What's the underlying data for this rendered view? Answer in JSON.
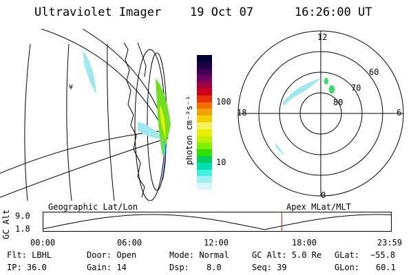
{
  "header": {
    "title": "Ultraviolet Imager",
    "date": "19 Oct 07",
    "time": "16:26:00 UT"
  },
  "colorbar": {
    "label": "photon cm⁻²s⁻¹",
    "ticks": [
      "100",
      "10"
    ],
    "colors": [
      "#000033",
      "#1a0040",
      "#3d0055",
      "#700060",
      "#a00040",
      "#d0001a",
      "#e83000",
      "#f07000",
      "#f0a000",
      "#f0d000",
      "#f0f060",
      "#e8f000",
      "#c0f000",
      "#80f000",
      "#30e000",
      "#00d060",
      "#00e0b0",
      "#40f0e0",
      "#a0f0f0",
      "#d8f8f8"
    ]
  },
  "polar": {
    "mlt_labels": {
      "top": "12",
      "left": "18",
      "right": "6",
      "bottom": "0"
    },
    "lat_labels": [
      "60",
      "70",
      "80"
    ]
  },
  "orbit": {
    "ylabel": "GC Alt",
    "yticks": [
      "9.0",
      "1.8"
    ],
    "left_caption": "Geographic Lat/Lon",
    "right_caption": "Apex MLat/MLT",
    "xticks": [
      "00:00",
      "06:00",
      "12:00",
      "18:00",
      "23:59"
    ],
    "marker_time_hours": 16.43
  },
  "footer": {
    "flt": "Flt: LBHL",
    "ip": "IP: 36.0",
    "door": "Door: Open",
    "gain": "Gain: 14",
    "mode": "Mode: Normal",
    "dsp_label": "Dsp:",
    "dsp_value": "8.0",
    "gcalt": "GC Alt: 5.0 Re",
    "seq": "Seq: 39",
    "glat_label": "GLat:",
    "glat_value": "−55.8",
    "glon_label": "GLon:",
    "glon_value": "60.1"
  }
}
